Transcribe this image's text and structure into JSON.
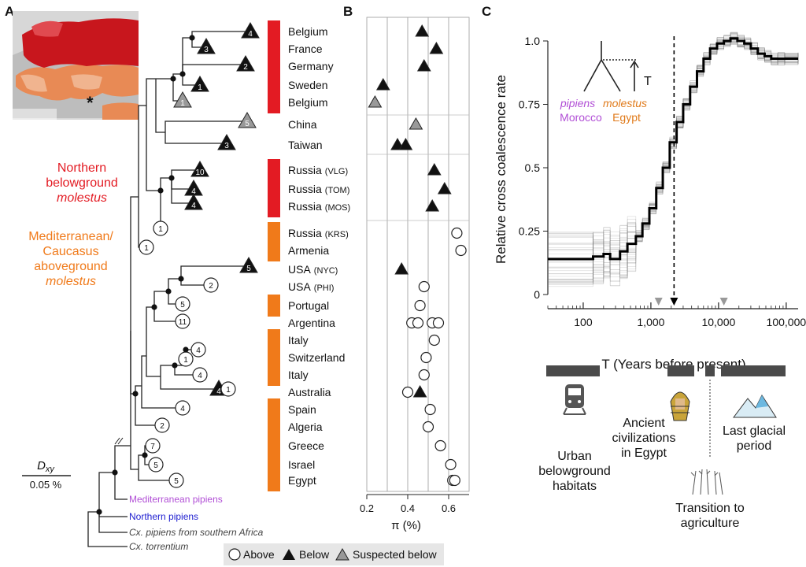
{
  "panels": {
    "a": "A",
    "b": "B",
    "c": "C"
  },
  "groups": {
    "northern_1": "Northern",
    "northern_2": "belowground",
    "northern_3": "molestus",
    "med_1": "Mediterranean/",
    "med_2": "Caucasus",
    "med_3": "aboveground",
    "med_4": "molestus"
  },
  "colors": {
    "red": "#e31b23",
    "orange": "#f07a1a",
    "purple": "#b14fd6",
    "blue": "#1d1dd0",
    "gray": "#999999"
  },
  "populations": [
    {
      "name": "Belgium",
      "sub": "",
      "bar": "red",
      "pi": [
        0.47
      ],
      "shape": "tri"
    },
    {
      "name": "France",
      "sub": "",
      "bar": "red",
      "pi": [
        0.54
      ],
      "shape": "tri"
    },
    {
      "name": "Germany",
      "sub": "",
      "bar": "red",
      "pi": [
        0.48
      ],
      "shape": "tri"
    },
    {
      "name": "Sweden",
      "sub": "",
      "bar": "red",
      "pi": [
        0.28
      ],
      "shape": "tri"
    },
    {
      "name": "Belgium",
      "sub": "",
      "bar": "red",
      "pi": [
        0.24
      ],
      "shape": "gtri"
    },
    {
      "name": "China",
      "sub": "",
      "bar": "",
      "pi": [
        0.44
      ],
      "shape": "gtri"
    },
    {
      "name": "Taiwan",
      "sub": "",
      "bar": "",
      "pi": [
        0.35,
        0.39
      ],
      "shape": "tri"
    },
    {
      "name": "Russia",
      "sub": "(VLG)",
      "bar": "red",
      "pi": [
        0.53
      ],
      "shape": "tri"
    },
    {
      "name": "Russia",
      "sub": "(TOM)",
      "bar": "red",
      "pi": [
        0.58
      ],
      "shape": "tri"
    },
    {
      "name": "Russia",
      "sub": "(MOS)",
      "bar": "red",
      "pi": [
        0.52
      ],
      "shape": "tri"
    },
    {
      "name": "Russia",
      "sub": "(KRS)",
      "bar": "orange",
      "pi": [
        0.64
      ],
      "shape": "circ"
    },
    {
      "name": "Armenia",
      "sub": "",
      "bar": "orange",
      "pi": [
        0.66
      ],
      "shape": "circ"
    },
    {
      "name": "USA",
      "sub": "(NYC)",
      "bar": "",
      "pi": [
        0.37
      ],
      "shape": "tri"
    },
    {
      "name": "USA",
      "sub": "(PHI)",
      "bar": "",
      "pi": [
        0.48
      ],
      "shape": "circ"
    },
    {
      "name": "Portugal",
      "sub": "",
      "bar": "orange",
      "pi": [
        0.46
      ],
      "shape": "circ"
    },
    {
      "name": "Argentina",
      "sub": "",
      "bar": "",
      "pi": [
        0.42,
        0.45,
        0.52,
        0.55
      ],
      "shape": "circ"
    },
    {
      "name": "Italy",
      "sub": "",
      "bar": "orange",
      "pi": [
        0.53
      ],
      "shape": "circ"
    },
    {
      "name": "Switzerland",
      "sub": "",
      "bar": "orange",
      "pi": [
        0.49
      ],
      "shape": "circ"
    },
    {
      "name": "Italy",
      "sub": "",
      "bar": "orange",
      "pi": [
        0.48
      ],
      "shape": "circ"
    },
    {
      "name": "Australia",
      "sub": "",
      "bar": "",
      "pi": [
        0.4,
        0.46
      ],
      "shape": "mix"
    },
    {
      "name": "Spain",
      "sub": "",
      "bar": "orange",
      "pi": [
        0.51
      ],
      "shape": "circ"
    },
    {
      "name": "Algeria",
      "sub": "",
      "bar": "orange",
      "pi": [
        0.5
      ],
      "shape": "circ"
    },
    {
      "name": "Greece",
      "sub": "",
      "bar": "orange",
      "pi": [
        0.56
      ],
      "shape": "circ"
    },
    {
      "name": "Israel",
      "sub": "",
      "bar": "orange",
      "pi": [
        0.61
      ],
      "shape": "circ"
    },
    {
      "name": "Egypt",
      "sub": "",
      "bar": "orange",
      "pi": [
        0.62,
        0.63
      ],
      "shape": "circ"
    }
  ],
  "tree_nodes": [
    "4",
    "3",
    "2",
    "1",
    "1",
    "5",
    "3",
    "10",
    "4",
    "4",
    "1",
    "1",
    "5",
    "2",
    "5",
    "11",
    "4",
    "1",
    "4",
    "4",
    "1",
    "4",
    "2",
    "7",
    "5",
    "5"
  ],
  "outgroups": {
    "med_pipiens": "Mediterranean pipiens",
    "northern_pipiens": "Northern pipiens",
    "southern_africa": "Cx. pipiens from southern Africa",
    "torrentium": "Cx. torrentium"
  },
  "scale": {
    "label": "D",
    "label_sub": "xy",
    "value": "0.05 %"
  },
  "panel_b": {
    "xlabel": "π (%)",
    "ticks": [
      "0.2",
      "0.4",
      "0.6"
    ]
  },
  "legend": {
    "above": "Above",
    "below": "Below",
    "suspected": "Suspected below"
  },
  "chart_data": {
    "type": "line",
    "xlabel": "T (Years before present)",
    "ylabel": "Relative cross coalescence rate",
    "xscale": "log",
    "xlim": [
      30,
      150000
    ],
    "ylim": [
      0,
      1.05
    ],
    "xticks": [
      "100",
      "1,000",
      "10,000",
      "100,000"
    ],
    "yticks": [
      "0",
      "0.25",
      "0.5",
      "0.75",
      "1.0"
    ],
    "series": [
      {
        "x": [
          30,
          140,
          200,
          250,
          350,
          450,
          600,
          750,
          950,
          1200,
          1500,
          1900,
          2400,
          3000,
          3800,
          4800,
          6000,
          7500,
          9500,
          12000,
          15000,
          19000,
          24000,
          30000,
          38000,
          48000,
          60000,
          75000,
          95000,
          150000
        ],
        "y": [
          0.14,
          0.15,
          0.16,
          0.14,
          0.17,
          0.2,
          0.23,
          0.28,
          0.34,
          0.42,
          0.5,
          0.6,
          0.68,
          0.75,
          0.82,
          0.88,
          0.93,
          0.97,
          0.99,
          1.0,
          1.01,
          1.0,
          0.99,
          0.97,
          0.95,
          0.94,
          0.93,
          0.93,
          0.93,
          0.93
        ]
      }
    ],
    "vline_x": 2200,
    "markers_x": [
      1300,
      12000
    ],
    "inset": {
      "pipiens": "pipiens",
      "molestus": "molestus",
      "morocco": "Morocco",
      "egypt": "Egypt",
      "t": "T"
    }
  },
  "timeline": {
    "urban": [
      "Urban",
      "belowground",
      "habitats"
    ],
    "ancient": [
      "Ancient",
      "civilizations",
      "in Egypt"
    ],
    "glacial": [
      "Last glacial",
      "period"
    ],
    "agri": [
      "Transition to",
      "agriculture"
    ]
  }
}
